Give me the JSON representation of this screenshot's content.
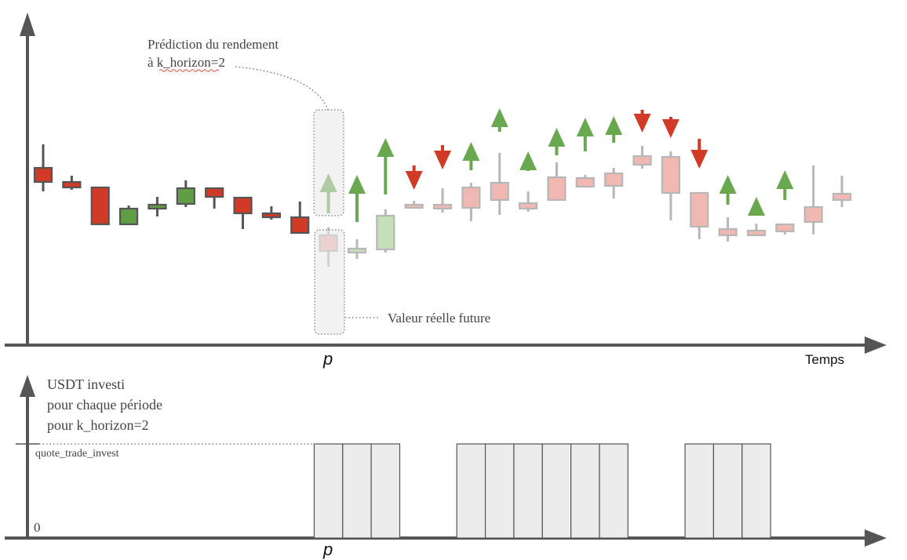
{
  "labels": {
    "prediction_line1": "Prédiction du rendement",
    "prediction_line2": "à k_horizon=2",
    "real_value": "Valeur réelle future",
    "p_top": "p",
    "time_axis": "Temps",
    "usdt_line1": "USDT investi",
    "usdt_line2": "pour chaque période",
    "usdt_line3": "pour k_horizon=2",
    "quote_level": "quote_trade_invest",
    "zero": "0",
    "p_bottom": "p"
  },
  "colors": {
    "axis": "#555555",
    "red": "#d03a26",
    "green": "#5f9e45",
    "light_red": "#f0b8b0",
    "light_green": "#c3e0b8",
    "future_outline": "#b7b7b7",
    "bar_fill": "#ececec",
    "arrow_green": "#6aa84f",
    "arrow_red": "#d03a26"
  },
  "chart_data": {
    "type": "candlestick",
    "candles_past": [
      {
        "open": 30,
        "close": 12,
        "high": 60,
        "low": 0
      },
      {
        "open": 12,
        "close": 5,
        "high": 20,
        "low": 2
      },
      {
        "open": 5,
        "close": -42,
        "high": 5,
        "low": -42
      },
      {
        "open": -42,
        "close": -22,
        "high": -18,
        "low": -42
      },
      {
        "open": -22,
        "close": -17,
        "high": -7,
        "low": -32
      },
      {
        "open": -16,
        "close": 4,
        "high": 14,
        "low": -20
      },
      {
        "open": 4,
        "close": -7,
        "high": 4,
        "low": -22
      },
      {
        "open": -8,
        "close": -28,
        "high": -8,
        "low": -48
      },
      {
        "open": -28,
        "close": -33,
        "high": -19,
        "low": -36
      },
      {
        "open": -33,
        "close": -53,
        "high": -13,
        "low": -53
      }
    ],
    "candles_future": [
      {
        "open": -56,
        "close": -76,
        "high": -46,
        "low": -96
      },
      {
        "open": -78,
        "close": -73,
        "high": -61,
        "low": -86
      },
      {
        "open": -74,
        "close": -31,
        "high": -23,
        "low": -78
      },
      {
        "open": -17,
        "close": -21,
        "high": -12,
        "low": -21
      },
      {
        "open": -17,
        "close": -22,
        "high": 4,
        "low": -27
      },
      {
        "open": 5,
        "close": -21,
        "high": 11,
        "low": -38
      },
      {
        "open": 11,
        "close": -11,
        "high": 49,
        "low": -30
      },
      {
        "open": -15,
        "close": -22,
        "high": 0,
        "low": -26
      },
      {
        "open": 18,
        "close": -11,
        "high": 37,
        "low": -11
      },
      {
        "open": 17,
        "close": 6,
        "high": 21,
        "low": 6
      },
      {
        "open": 23,
        "close": 7,
        "high": 30,
        "low": -9
      },
      {
        "open": 45,
        "close": 34,
        "high": 58,
        "low": 29
      },
      {
        "open": 44,
        "close": -2,
        "high": 51,
        "low": -37
      },
      {
        "open": -2,
        "close": -45,
        "high": -2,
        "low": -61
      },
      {
        "open": -48,
        "close": -56,
        "high": -33,
        "low": -64
      },
      {
        "open": -50,
        "close": -56,
        "high": -41,
        "low": -56
      },
      {
        "open": -42,
        "close": -51,
        "high": -42,
        "low": -55
      },
      {
        "open": -20,
        "close": -39,
        "high": 33,
        "low": -55
      },
      {
        "open": -3,
        "close": -11,
        "high": 20,
        "low": -20
      }
    ],
    "prediction_arrows": [
      {
        "direction": "up",
        "color": "green",
        "start": -28,
        "end": 23
      },
      {
        "direction": "up",
        "color": "green",
        "start": -39,
        "end": 21
      },
      {
        "direction": "up",
        "color": "green",
        "start": -4,
        "end": 68
      },
      {
        "direction": "down",
        "color": "red",
        "start": 33,
        "end": 2
      },
      {
        "direction": "down",
        "color": "red",
        "start": 59,
        "end": 28
      },
      {
        "direction": "up",
        "color": "green",
        "start": 27,
        "end": 63
      },
      {
        "direction": "up",
        "color": "green",
        "start": 76,
        "end": 106
      },
      {
        "direction": "up",
        "color": "green",
        "start": 26,
        "end": 51
      },
      {
        "direction": "up",
        "color": "green",
        "start": 46,
        "end": 81
      },
      {
        "direction": "up",
        "color": "green",
        "start": 51,
        "end": 94
      },
      {
        "direction": "up",
        "color": "green",
        "start": 62,
        "end": 96
      },
      {
        "direction": "down",
        "color": "red",
        "start": 104,
        "end": 75
      },
      {
        "direction": "down",
        "color": "red",
        "start": 95,
        "end": 68
      },
      {
        "direction": "down",
        "color": "red",
        "start": 67,
        "end": 29
      },
      {
        "direction": "up",
        "color": "green",
        "start": -17,
        "end": 21
      },
      {
        "direction": "up",
        "color": "green",
        "start": -30,
        "end": -7
      },
      {
        "direction": "up",
        "color": "green",
        "start": -11,
        "end": 27
      }
    ],
    "investment_levels": [
      0,
      0,
      0,
      0,
      0,
      0,
      0,
      0,
      0,
      0,
      1,
      1,
      1,
      0,
      0,
      1,
      1,
      1,
      1,
      1,
      1,
      0,
      0,
      1,
      1,
      1,
      0,
      0,
      0
    ],
    "xlabel": "Temps"
  }
}
